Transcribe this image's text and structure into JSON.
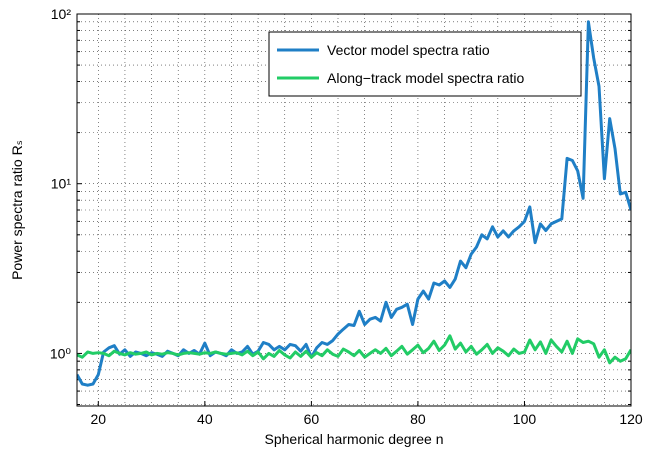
{
  "chart_data": {
    "type": "line",
    "xlabel": "Spherical harmonic degree n",
    "ylabel": "Power spectra ratio Rₛ",
    "log_y": true,
    "grid": true,
    "legend": "upper right",
    "xlim": [
      16,
      120
    ],
    "xticks": [
      20,
      40,
      60,
      80,
      100,
      120
    ],
    "xminorticks": [
      25,
      30,
      35,
      45,
      50,
      55,
      65,
      70,
      75,
      85,
      90,
      95,
      105,
      110,
      115
    ],
    "ylim": [
      0.49,
      100
    ],
    "yticks": [
      {
        "value": 1,
        "label": "10⁰"
      },
      {
        "value": 10,
        "label": "10¹"
      },
      {
        "value": 100,
        "label": "10²"
      }
    ],
    "yminorticks": [
      0.5,
      0.6,
      0.7,
      0.8,
      0.9,
      2,
      3,
      4,
      5,
      6,
      7,
      8,
      9,
      20,
      30,
      40,
      50,
      60,
      70,
      80,
      90
    ],
    "x": [
      16,
      17,
      18,
      19,
      20,
      21,
      22,
      23,
      24,
      25,
      26,
      27,
      28,
      29,
      30,
      31,
      32,
      33,
      34,
      35,
      36,
      37,
      38,
      39,
      40,
      41,
      42,
      43,
      44,
      45,
      46,
      47,
      48,
      49,
      50,
      51,
      52,
      53,
      54,
      55,
      56,
      57,
      58,
      59,
      60,
      61,
      62,
      63,
      64,
      65,
      66,
      67,
      68,
      69,
      70,
      71,
      72,
      73,
      74,
      75,
      76,
      77,
      78,
      79,
      80,
      81,
      82,
      83,
      84,
      85,
      86,
      87,
      88,
      89,
      90,
      91,
      92,
      93,
      94,
      95,
      96,
      97,
      98,
      99,
      100,
      101,
      102,
      103,
      104,
      105,
      106,
      107,
      108,
      109,
      110,
      111,
      112,
      113,
      114,
      115,
      116,
      117,
      118,
      119,
      120
    ],
    "series": [
      {
        "name": "Vector model spectra ratio",
        "color": "#1f7fc6",
        "values": [
          0.75,
          0.66,
          0.65,
          0.66,
          0.75,
          1.02,
          1.08,
          1.11,
          0.99,
          1.05,
          0.96,
          1.02,
          1.0,
          0.97,
          1.01,
          0.99,
          0.96,
          1.03,
          1.0,
          0.97,
          1.05,
          1.0,
          1.04,
          0.99,
          1.15,
          0.97,
          1.02,
          1.0,
          0.97,
          1.05,
          1.0,
          1.02,
          1.1,
          0.99,
          1.03,
          1.16,
          1.13,
          1.05,
          1.1,
          1.05,
          1.13,
          1.11,
          1.03,
          1.13,
          0.95,
          1.08,
          1.16,
          1.13,
          1.19,
          1.3,
          1.39,
          1.48,
          1.46,
          1.77,
          1.48,
          1.59,
          1.63,
          1.55,
          2.0,
          1.63,
          1.82,
          1.87,
          1.95,
          1.48,
          2.09,
          2.33,
          2.09,
          2.6,
          2.53,
          2.67,
          2.45,
          2.74,
          3.5,
          3.2,
          3.85,
          4.24,
          5.0,
          4.73,
          5.57,
          4.85,
          5.27,
          4.85,
          5.27,
          5.57,
          6.0,
          7.3,
          4.5,
          5.8,
          5.3,
          5.8,
          6.0,
          6.2,
          14.1,
          13.7,
          11.9,
          8.2,
          90,
          55,
          37.5,
          10.7,
          24.2,
          16.1,
          8.7,
          8.9,
          7.0
        ]
      },
      {
        "name": "Along−track model spectra ratio",
        "color": "#22cc66",
        "values": [
          0.98,
          0.95,
          1.02,
          1.0,
          1.01,
          1.0,
          0.97,
          1.03,
          1.0,
          0.98,
          1.01,
          0.99,
          1.0,
          1.02,
          0.98,
          1.0,
          0.99,
          1.01,
          1.0,
          0.98,
          1.0,
          1.01,
          1.0,
          0.99,
          1.01,
          1.0,
          1.02,
          1.0,
          0.99,
          1.0,
          1.01,
          0.98,
          1.03,
          0.97,
          1.02,
          0.93,
          1.0,
          0.96,
          1.04,
          0.98,
          0.94,
          1.02,
          0.96,
          1.03,
          0.95,
          1.01,
          0.97,
          1.05,
          0.99,
          0.96,
          1.06,
          1.02,
          0.97,
          1.04,
          0.95,
          1.0,
          1.05,
          1.0,
          1.07,
          0.97,
          1.03,
          1.1,
          0.99,
          1.05,
          1.12,
          1.01,
          1.07,
          1.18,
          1.04,
          1.12,
          1.27,
          1.06,
          1.15,
          1.02,
          1.1,
          0.99,
          1.05,
          1.13,
          1.0,
          1.08,
          1.03,
          0.97,
          1.06,
          1.0,
          1.02,
          1.2,
          1.05,
          1.17,
          1.0,
          1.2,
          1.1,
          1.02,
          1.18,
          1.0,
          1.22,
          1.16,
          1.18,
          1.14,
          0.95,
          1.05,
          0.88,
          0.95,
          0.9,
          0.93,
          1.05
        ]
      }
    ]
  }
}
